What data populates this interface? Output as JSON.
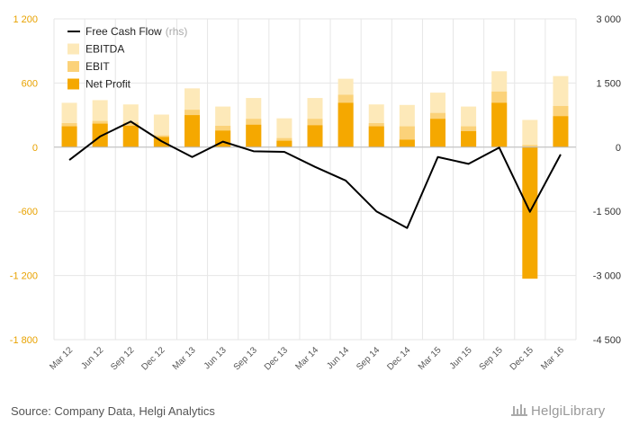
{
  "chart_data": {
    "type": "bar",
    "categories": [
      "Mar 12",
      "Jun 12",
      "Sep 12",
      "Dec 12",
      "Mar 13",
      "Jun 13",
      "Sep 13",
      "Dec 13",
      "Mar 14",
      "Jun 14",
      "Sep 14",
      "Dec 14",
      "Mar 15",
      "Jun 15",
      "Sep 15",
      "Dec 15",
      "Mar 16"
    ],
    "series": [
      {
        "name": "EBITDA",
        "axis": "left",
        "color": "#fde9b9",
        "values": [
          415,
          440,
          400,
          305,
          550,
          380,
          460,
          270,
          460,
          640,
          400,
          395,
          510,
          380,
          710,
          255,
          665
        ]
      },
      {
        "name": "EBIT",
        "axis": "left",
        "color": "#fbd27a",
        "values": [
          225,
          245,
          230,
          110,
          350,
          200,
          265,
          85,
          265,
          490,
          225,
          195,
          320,
          195,
          520,
          20,
          385
        ]
      },
      {
        "name": "Net Profit",
        "axis": "left",
        "color": "#f5a800",
        "values": [
          195,
          220,
          200,
          95,
          300,
          155,
          210,
          60,
          205,
          415,
          195,
          70,
          265,
          150,
          415,
          -1230,
          290
        ]
      },
      {
        "name": "Free Cash Flow",
        "note": "(rhs)",
        "axis": "right",
        "color": "#000000",
        "type": "line",
        "values": [
          -300,
          250,
          600,
          140,
          -230,
          130,
          -95,
          -110,
          -460,
          -780,
          -1500,
          -1890,
          -230,
          -390,
          -10,
          -1510,
          -170
        ]
      }
    ],
    "ylim_left": [
      -1800,
      1200
    ],
    "ylim_right": [
      -4500,
      3000
    ],
    "yticks_left": [
      "1 200",
      "600",
      "0",
      "-600",
      "-1 200",
      "-1 800"
    ],
    "yticks_right": [
      "3 000",
      "1 500",
      "0",
      "-1 500",
      "-3 000",
      "-4 500"
    ],
    "legend_position": "top-left",
    "grid": true
  },
  "footer": {
    "source": "Source: Company Data, Helgi Analytics",
    "brand": "HelgiLibrary"
  },
  "colors": {
    "left_axis": "#e8a200",
    "grid": "#e6e6e6"
  }
}
